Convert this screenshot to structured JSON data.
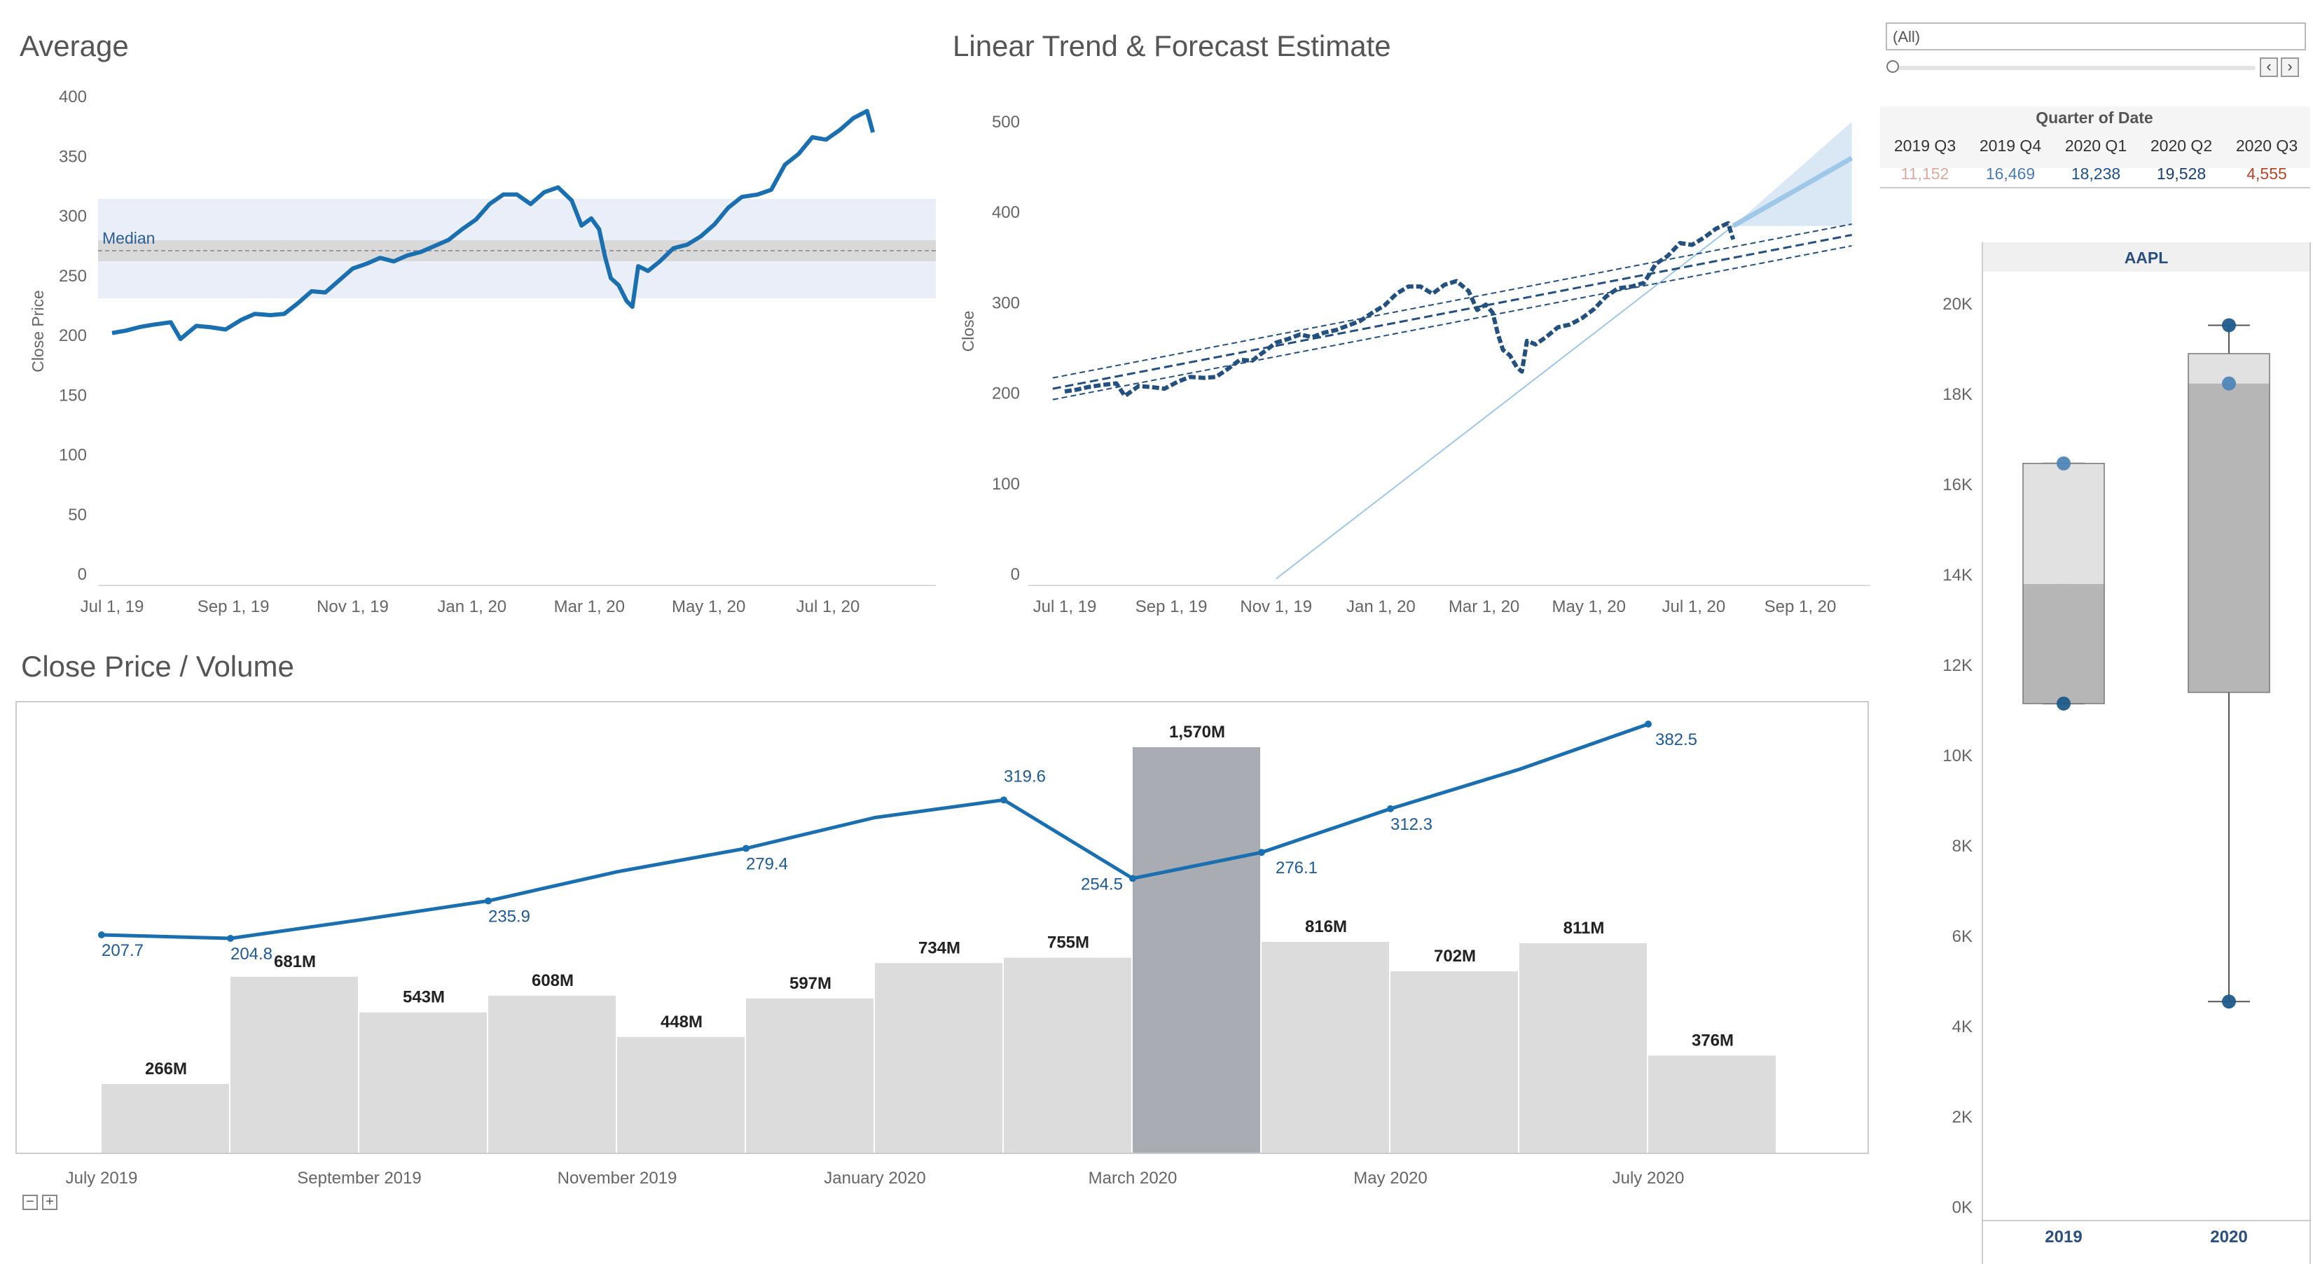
{
  "filter": {
    "value": "(All)",
    "prev_icon": "chevron-left-icon",
    "next_icon": "chevron-right-icon"
  },
  "controls": {
    "collapse_icon": "minus-box-icon",
    "expand_icon": "plus-box-icon"
  },
  "colors": {
    "line": "#1a6fb0",
    "dark_line": "#24507f",
    "bar": "#dcdcdc",
    "highlight_bar": "#a9adb3",
    "band": "#e9eef8",
    "forecast": "#9ec7e8",
    "box_light": "#e1e1e1",
    "box_dark": "#b6b6b6"
  },
  "chart_data": [
    {
      "type": "line",
      "title": "Average",
      "ylabel": "Close Price",
      "xlabel": "",
      "ylim": [
        0,
        400
      ],
      "y_ticks": [
        "400",
        "350",
        "300",
        "250",
        "200",
        "150",
        "100",
        "50",
        "0"
      ],
      "x_ticks": [
        "Jul 1, 19",
        "Sep 1, 19",
        "Nov 1, 19",
        "Jan 1, 20",
        "Mar 1, 20",
        "May 1, 20",
        "Jul 1, 20"
      ],
      "reference_line": {
        "label": "Median",
        "value": 276
      },
      "reference_band": [
        236,
        316
      ],
      "series": [
        {
          "values": [
            [
              "2019-07-01",
              202
            ],
            [
              "2019-07-08",
              204
            ],
            [
              "2019-07-15",
              207
            ],
            [
              "2019-07-22",
              209
            ],
            [
              "2019-07-31",
              211
            ],
            [
              "2019-08-05",
              197
            ],
            [
              "2019-08-13",
              208
            ],
            [
              "2019-08-20",
              207
            ],
            [
              "2019-08-28",
              205
            ],
            [
              "2019-09-05",
              213
            ],
            [
              "2019-09-12",
              218
            ],
            [
              "2019-09-20",
              217
            ],
            [
              "2019-09-27",
              218
            ],
            [
              "2019-10-04",
              227
            ],
            [
              "2019-10-11",
              237
            ],
            [
              "2019-10-18",
              236
            ],
            [
              "2019-10-25",
              246
            ],
            [
              "2019-11-01",
              256
            ],
            [
              "2019-11-08",
              260
            ],
            [
              "2019-11-15",
              265
            ],
            [
              "2019-11-22",
              262
            ],
            [
              "2019-11-29",
              267
            ],
            [
              "2019-12-06",
              270
            ],
            [
              "2019-12-13",
              275
            ],
            [
              "2019-12-20",
              280
            ],
            [
              "2019-12-27",
              289
            ],
            [
              "2020-01-03",
              297
            ],
            [
              "2020-01-10",
              310
            ],
            [
              "2020-01-17",
              318
            ],
            [
              "2020-01-24",
              318
            ],
            [
              "2020-01-31",
              310
            ],
            [
              "2020-02-07",
              320
            ],
            [
              "2020-02-14",
              324
            ],
            [
              "2020-02-21",
              313
            ],
            [
              "2020-02-26",
              292
            ],
            [
              "2020-03-02",
              298
            ],
            [
              "2020-03-06",
              289
            ],
            [
              "2020-03-09",
              266
            ],
            [
              "2020-03-12",
              248
            ],
            [
              "2020-03-16",
              242
            ],
            [
              "2020-03-20",
              229
            ],
            [
              "2020-03-23",
              224
            ],
            [
              "2020-03-26",
              258
            ],
            [
              "2020-03-31",
              254
            ],
            [
              "2020-04-06",
              262
            ],
            [
              "2020-04-13",
              273
            ],
            [
              "2020-04-20",
              276
            ],
            [
              "2020-04-27",
              283
            ],
            [
              "2020-05-04",
              293
            ],
            [
              "2020-05-11",
              307
            ],
            [
              "2020-05-18",
              316
            ],
            [
              "2020-05-26",
              318
            ],
            [
              "2020-06-02",
              322
            ],
            [
              "2020-06-09",
              343
            ],
            [
              "2020-06-16",
              352
            ],
            [
              "2020-06-23",
              366
            ],
            [
              "2020-06-30",
              364
            ],
            [
              "2020-07-07",
              372
            ],
            [
              "2020-07-14",
              382
            ],
            [
              "2020-07-21",
              388
            ],
            [
              "2020-07-24",
              370
            ]
          ]
        }
      ]
    },
    {
      "type": "line",
      "title": "Linear Trend & Forecast Estimate",
      "ylabel": "Close",
      "xlabel": "",
      "ylim": [
        0,
        500
      ],
      "y_ticks": [
        "500",
        "400",
        "300",
        "200",
        "100",
        "0"
      ],
      "x_ticks": [
        "Jul 1, 19",
        "Sep 1, 19",
        "Nov 1, 19",
        "Jan 1, 20",
        "Mar 1, 20",
        "May 1, 20",
        "Jul 1, 20",
        "Sep 1, 20"
      ],
      "trend_line": {
        "start": [
          "2019-06-24",
          205
        ],
        "end": [
          "2020-10-01",
          375
        ]
      },
      "trend_band": 12,
      "forecast": {
        "start": [
          "2020-07-24",
          385
        ],
        "end": [
          "2020-10-01",
          460
        ],
        "band_end": [
          385,
          500
        ]
      },
      "forecast_trend": {
        "start": [
          "2019-11-01",
          -5
        ],
        "end": [
          "2020-07-24",
          385
        ]
      }
    },
    {
      "type": "bar",
      "title": "Close Price / Volume",
      "categories": [
        "July 2019",
        "August 2019",
        "September 2019",
        "October 2019",
        "November 2019",
        "December 2019",
        "January 2020",
        "February 2020",
        "March 2020",
        "April 2020",
        "May 2020",
        "June 2020",
        "July 2020"
      ],
      "x_ticks": [
        "July 2019",
        "September 2019",
        "November 2019",
        "January 2020",
        "March 2020",
        "May 2020",
        "July 2020"
      ],
      "volume_values": [
        266,
        681,
        543,
        608,
        448,
        597,
        734,
        755,
        1570,
        816,
        702,
        811,
        376
      ],
      "volume_labels": [
        "266M",
        "681M",
        "543M",
        "608M",
        "448M",
        "597M",
        "734M",
        "755M",
        "1,570M",
        "816M",
        "702M",
        "811M",
        "376M"
      ],
      "highlight_index": 8,
      "close_values": [
        207.7,
        204.8,
        220,
        235.9,
        260,
        279.4,
        305,
        319.6,
        254.5,
        276.1,
        312.3,
        345,
        382.5
      ],
      "close_labels": [
        "207.7",
        "204.8",
        "",
        "235.9",
        "",
        "279.4",
        "",
        "319.6",
        "254.5",
        "276.1",
        "312.3",
        "",
        "382.5"
      ]
    },
    {
      "type": "table",
      "header": "Quarter of Date",
      "columns": [
        "2019 Q3",
        "2019 Q4",
        "2020 Q1",
        "2020 Q2",
        "2020 Q3"
      ],
      "values": [
        "11,152",
        "16,469",
        "18,238",
        "19,528",
        "4,555"
      ],
      "colors": [
        "#d8aaa0",
        "#4a7ab3",
        "#1f4f86",
        "#1a3f6c",
        "#b5452c"
      ]
    },
    {
      "type": "box",
      "title": "AAPL",
      "categories": [
        "2019",
        "2020"
      ],
      "ylim": [
        0,
        20000
      ],
      "y_ticks": [
        "20K",
        "18K",
        "16K",
        "14K",
        "12K",
        "10K",
        "8K",
        "6K",
        "4K",
        "2K",
        "0K"
      ],
      "boxes": [
        {
          "min": 11152,
          "q1": 11152,
          "median": 13800,
          "q3": 16469,
          "max": 16469,
          "points": [
            11152,
            16469
          ]
        },
        {
          "min": 4555,
          "q1": 11400,
          "median": 18238,
          "q3": 18900,
          "max": 19528,
          "points": [
            4555,
            18238,
            19528
          ]
        }
      ]
    }
  ]
}
